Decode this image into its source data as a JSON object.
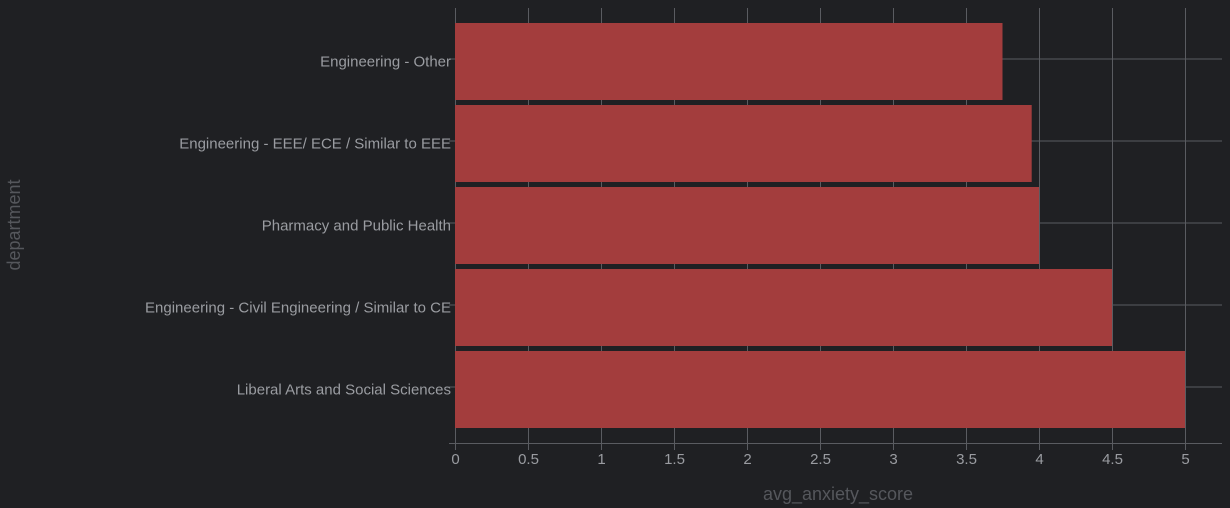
{
  "chart_data": {
    "type": "bar",
    "orientation": "horizontal",
    "categories": [
      "Engineering - Other",
      "Engineering - EEE/ ECE / Similar to EEE",
      "Pharmacy and Public Health",
      "Engineering - Civil Engineering / Similar to CE",
      "Liberal Arts and Social Sciences"
    ],
    "values": [
      3.75,
      3.95,
      4.0,
      4.5,
      5.0
    ],
    "xlabel": "avg_anxiety_score",
    "ylabel": "department",
    "xlim": [
      0,
      5.25
    ],
    "xticks": [
      "0",
      "0.5",
      "1",
      "1.5",
      "2",
      "2.5",
      "3",
      "3.5",
      "4",
      "4.5",
      "5"
    ],
    "grid": true,
    "bar_color": "#a33d3d",
    "background_color": "#1f2023"
  }
}
